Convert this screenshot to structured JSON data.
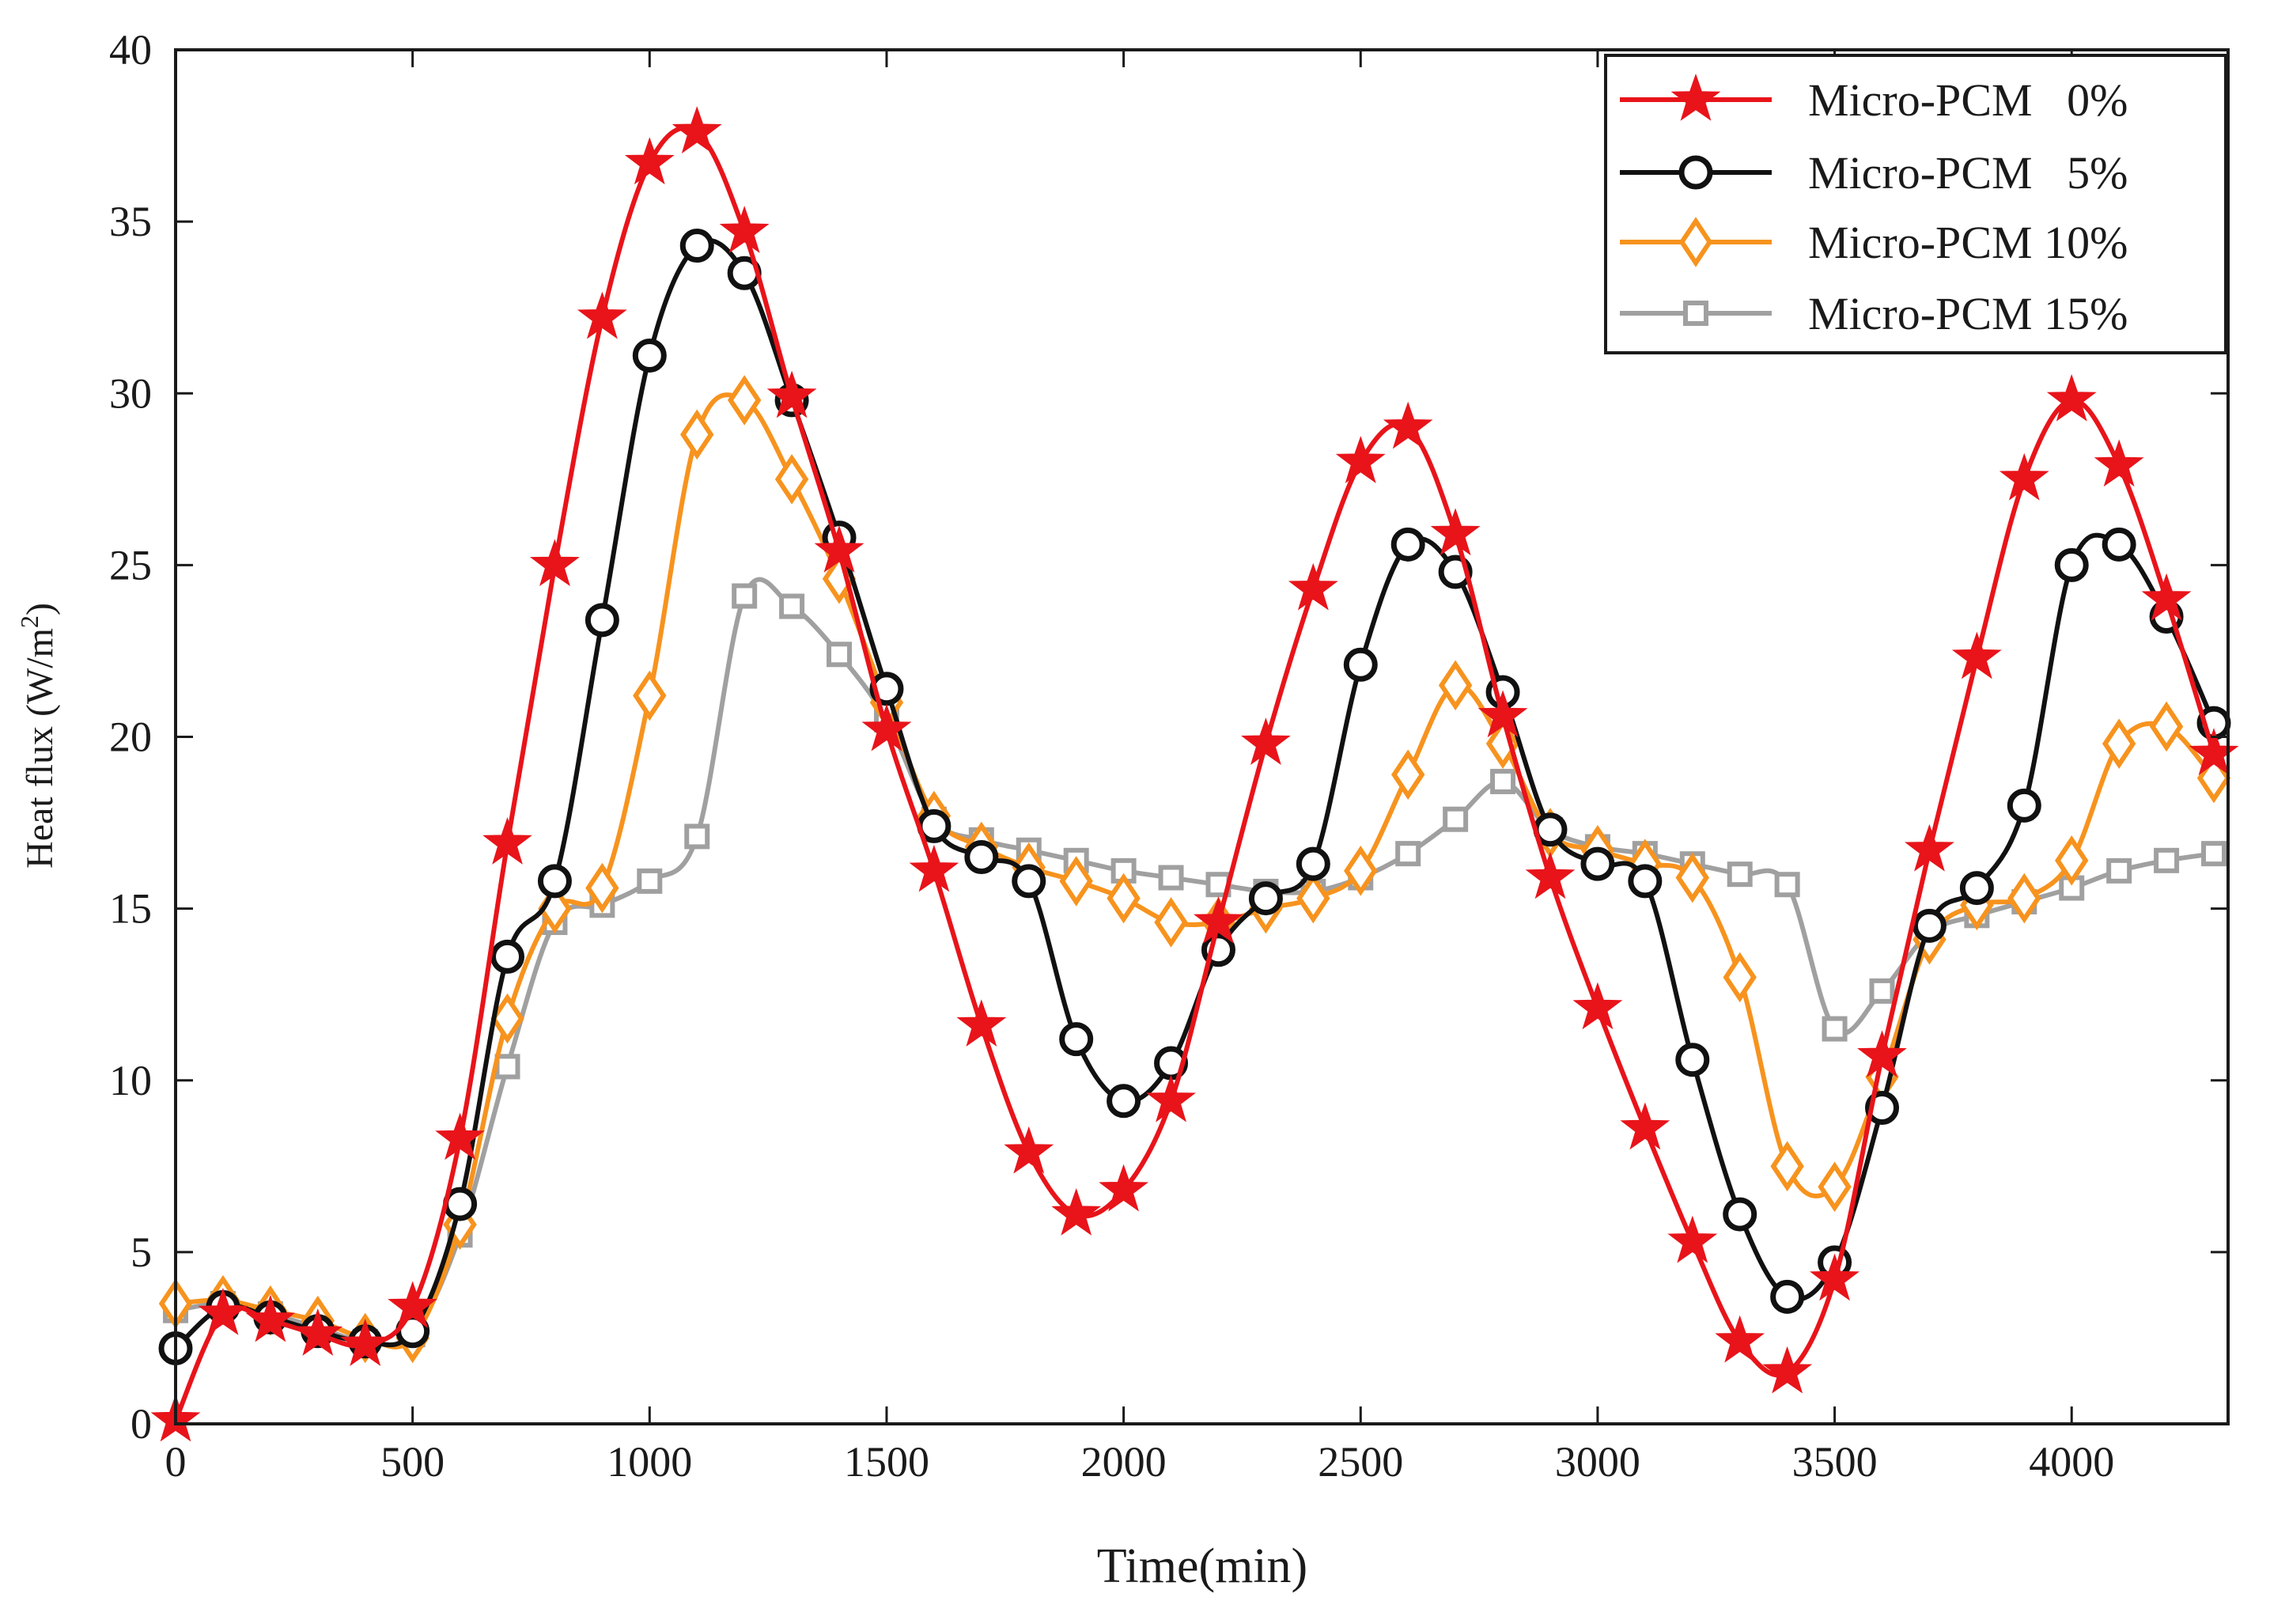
{
  "chart_data": {
    "type": "line",
    "title": "",
    "xlabel": "Time(min)",
    "ylabel": "Heat flux (W/m",
    "ylabel_superscript": "2",
    "ylabel_close": ")",
    "xlim": [
      0,
      4330
    ],
    "ylim": [
      0,
      40
    ],
    "grid": false,
    "legend_position": "top-right",
    "x_ticks": [
      0,
      500,
      1000,
      1500,
      2000,
      2500,
      3000,
      3500,
      4000
    ],
    "y_ticks": [
      0,
      5,
      10,
      15,
      20,
      25,
      30,
      35,
      40
    ],
    "x_tick_labels": [
      "0",
      "500",
      "1000",
      "1500",
      "2000",
      "2500",
      "3000",
      "3500",
      "4000"
    ],
    "y_tick_labels": [
      "0",
      "5",
      "10",
      "15",
      "20",
      "25",
      "30",
      "35",
      "40"
    ],
    "x": [
      0,
      100,
      200,
      300,
      400,
      500,
      600,
      700,
      800,
      900,
      1000,
      1100,
      1200,
      1300,
      1400,
      1500,
      1600,
      1700,
      1800,
      1900,
      2000,
      2100,
      2200,
      2300,
      2400,
      2500,
      2600,
      2700,
      2800,
      2900,
      3000,
      3100,
      3200,
      3300,
      3400,
      3500,
      3600,
      3700,
      3800,
      3900,
      4000,
      4100,
      4200,
      4300
    ],
    "series": [
      {
        "name": "Micro-PCM   0%",
        "color": "#e8141a",
        "marker": "star",
        "values": [
          0.1,
          3.2,
          3.0,
          2.6,
          2.3,
          3.4,
          8.3,
          16.9,
          25.0,
          32.2,
          36.7,
          37.6,
          34.7,
          29.9,
          25.4,
          20.2,
          16.1,
          11.6,
          7.9,
          6.1,
          6.8,
          9.4,
          14.6,
          19.8,
          24.3,
          28.0,
          29.0,
          25.9,
          20.6,
          15.9,
          12.1,
          8.6,
          5.3,
          2.4,
          1.5,
          4.2,
          10.7,
          16.7,
          22.3,
          27.5,
          29.8,
          27.9,
          24.0,
          19.5
        ]
      },
      {
        "name": "Micro-PCM   5%",
        "color": "#111111",
        "marker": "circle",
        "values": [
          2.2,
          3.4,
          3.1,
          2.7,
          2.4,
          2.7,
          6.4,
          13.6,
          15.8,
          23.4,
          31.1,
          34.3,
          33.5,
          29.8,
          25.8,
          21.4,
          17.4,
          16.5,
          15.8,
          11.2,
          9.4,
          10.5,
          13.8,
          15.3,
          16.3,
          22.1,
          25.6,
          24.8,
          21.3,
          17.3,
          16.3,
          15.8,
          10.6,
          6.1,
          3.7,
          4.7,
          9.2,
          14.5,
          15.6,
          18.0,
          25.0,
          25.6,
          23.5,
          20.4
        ]
      },
      {
        "name": "Micro-PCM 10%",
        "color": "#f7931e",
        "marker": "diamond",
        "values": [
          3.5,
          3.6,
          3.3,
          3.0,
          2.5,
          2.5,
          5.8,
          11.8,
          15.0,
          15.6,
          21.2,
          28.8,
          29.8,
          27.5,
          24.6,
          21.0,
          17.7,
          16.8,
          16.2,
          15.8,
          15.3,
          14.6,
          14.6,
          15.0,
          15.3,
          16.1,
          18.9,
          21.5,
          19.8,
          17.2,
          16.7,
          16.3,
          15.9,
          13.0,
          7.5,
          6.9,
          10.1,
          14.1,
          15.1,
          15.3,
          16.4,
          19.8,
          20.3,
          18.8
        ]
      },
      {
        "name": "Micro-PCM 15%",
        "color": "#a0a0a0",
        "marker": "square",
        "values": [
          3.3,
          3.5,
          3.2,
          2.8,
          2.4,
          2.6,
          5.5,
          10.4,
          14.6,
          15.1,
          15.8,
          17.1,
          24.1,
          23.8,
          22.4,
          20.5,
          17.6,
          17.0,
          16.7,
          16.4,
          16.1,
          15.9,
          15.7,
          15.5,
          15.5,
          15.9,
          16.6,
          17.6,
          18.7,
          17.3,
          16.8,
          16.6,
          16.3,
          16.0,
          15.7,
          11.5,
          12.6,
          14.3,
          14.8,
          15.2,
          15.6,
          16.1,
          16.4,
          16.6
        ]
      }
    ]
  }
}
